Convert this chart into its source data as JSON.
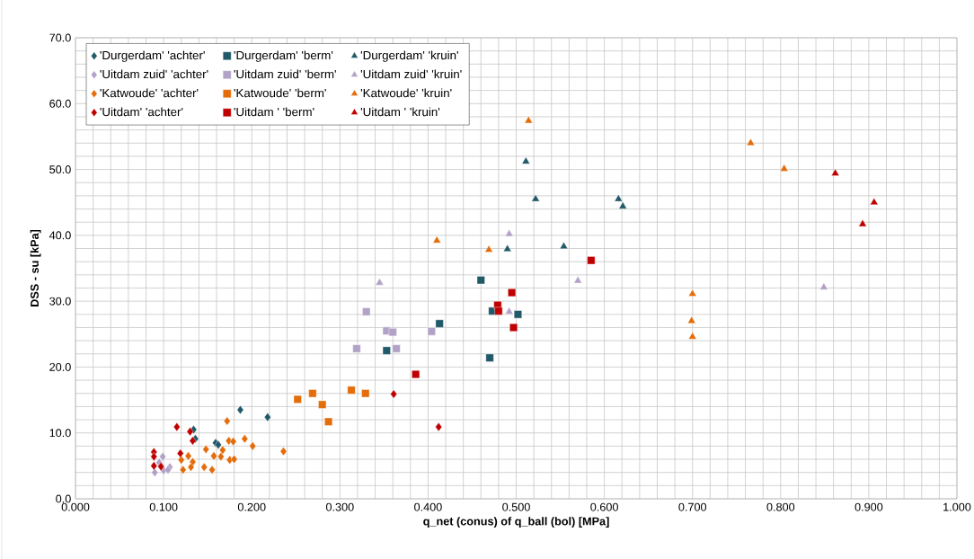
{
  "chart_data": {
    "type": "scatter",
    "xlabel": "q_net  (conus) of q_ball (bol) [MPa]",
    "ylabel": "DSS - su [kPa]",
    "xlim": [
      0,
      1
    ],
    "ylim": [
      0,
      70
    ],
    "xticks": [
      {
        "value": 0,
        "label": "0.000"
      },
      {
        "value": 0.1,
        "label": "0.100"
      },
      {
        "value": 0.2,
        "label": "0.200"
      },
      {
        "value": 0.3,
        "label": "0.300"
      },
      {
        "value": 0.4,
        "label": "0.400"
      },
      {
        "value": 0.5,
        "label": "0.500"
      },
      {
        "value": 0.6,
        "label": "0.600"
      },
      {
        "value": 0.7,
        "label": "0.700"
      },
      {
        "value": 0.8,
        "label": "0.800"
      },
      {
        "value": 0.9,
        "label": "0.900"
      },
      {
        "value": 1,
        "label": "1.000"
      }
    ],
    "yticks": [
      {
        "value": 0,
        "label": "0.0"
      },
      {
        "value": 10,
        "label": "10.0"
      },
      {
        "value": 20,
        "label": "20.0"
      },
      {
        "value": 30,
        "label": "30.0"
      },
      {
        "value": 40,
        "label": "40.0"
      },
      {
        "value": 50,
        "label": "50.0"
      },
      {
        "value": 60,
        "label": "60.0"
      },
      {
        "value": 70,
        "label": "70.0"
      }
    ],
    "grid": true,
    "legend": "top left",
    "series": [
      {
        "name": "'Durgerdam' 'achter'",
        "color": "#215968",
        "marker": "diamond",
        "x": [
          0.187,
          0.218,
          0.134,
          0.136,
          0.159,
          0.162
        ],
        "values": [
          13.5,
          12.4,
          10.5,
          9.1,
          8.5,
          8.2
        ]
      },
      {
        "name": "'Durgerdam' 'berm'",
        "color": "#215968",
        "marker": "square",
        "x": [
          0.46,
          0.473,
          0.502,
          0.413,
          0.353,
          0.47
        ],
        "values": [
          33.2,
          28.5,
          28.0,
          26.6,
          22.5,
          21.4
        ]
      },
      {
        "name": "'Durgerdam' 'kruin'",
        "color": "#215968",
        "marker": "triangle",
        "x": [
          0.511,
          0.522,
          0.616,
          0.621,
          0.49,
          0.554
        ],
        "values": [
          51.2,
          45.5,
          45.5,
          44.4,
          37.9,
          38.3
        ]
      },
      {
        "name": "'Uitdam zuid' 'achter'",
        "color": "#b3a2c7",
        "marker": "diamond",
        "x": [
          0.099,
          0.09,
          0.1,
          0.107,
          0.105,
          0.095
        ],
        "values": [
          6.4,
          4.0,
          4.3,
          4.8,
          4.4,
          5.5
        ]
      },
      {
        "name": "'Uitdam zuid' 'berm'",
        "color": "#b3a2c7",
        "marker": "square",
        "x": [
          0.33,
          0.353,
          0.36,
          0.404,
          0.319,
          0.364
        ],
        "values": [
          28.4,
          25.5,
          25.3,
          25.4,
          22.8,
          22.8
        ]
      },
      {
        "name": "'Uitdam zuid' 'kruin'",
        "color": "#b3a2c7",
        "marker": "triangle",
        "x": [
          0.492,
          0.345,
          0.57,
          0.849,
          0.492
        ],
        "values": [
          40.2,
          32.8,
          33.1,
          32.1,
          28.4
        ]
      },
      {
        "name": "'Katwoude' 'achter'",
        "color": "#e46c0a",
        "marker": "diamond",
        "x": [
          0.172,
          0.174,
          0.179,
          0.192,
          0.201,
          0.236,
          0.148,
          0.167,
          0.157,
          0.165,
          0.175,
          0.18,
          0.128,
          0.12,
          0.133,
          0.122,
          0.131,
          0.146,
          0.155
        ],
        "values": [
          11.8,
          8.8,
          8.7,
          9.1,
          8.0,
          7.2,
          7.5,
          7.4,
          6.5,
          6.4,
          5.9,
          6.0,
          6.5,
          5.9,
          5.6,
          4.4,
          4.8,
          4.8,
          4.4
        ]
      },
      {
        "name": "'Katwoude' 'berm'",
        "color": "#e46c0a",
        "marker": "square",
        "x": [
          0.252,
          0.269,
          0.28,
          0.287,
          0.313,
          0.329
        ],
        "values": [
          15.1,
          16.0,
          14.3,
          11.7,
          16.5,
          16.0
        ]
      },
      {
        "name": "'Katwoude' 'kruin'",
        "color": "#e46c0a",
        "marker": "triangle",
        "x": [
          0.514,
          0.766,
          0.804,
          0.41,
          0.469,
          0.7,
          0.699,
          0.7
        ],
        "values": [
          57.4,
          54.0,
          50.1,
          39.2,
          37.8,
          31.1,
          27.0,
          24.6
        ]
      },
      {
        "name": "'Uitdam' 'achter'",
        "color": "#c00000",
        "marker": "diamond",
        "x": [
          0.361,
          0.412,
          0.115,
          0.13,
          0.133,
          0.119,
          0.089,
          0.089,
          0.089,
          0.097
        ],
        "values": [
          15.9,
          10.9,
          10.9,
          10.2,
          8.8,
          6.9,
          7.1,
          6.4,
          5.0,
          4.9
        ]
      },
      {
        "name": "'Uitdam ' 'berm'",
        "color": "#c00000",
        "marker": "square",
        "x": [
          0.585,
          0.495,
          0.479,
          0.48,
          0.497,
          0.386
        ],
        "values": [
          36.2,
          31.3,
          29.4,
          28.5,
          26.0,
          18.9
        ]
      },
      {
        "name": "'Uitdam ' 'kruin'",
        "color": "#c00000",
        "marker": "triangle",
        "x": [
          0.862,
          0.906,
          0.893
        ],
        "values": [
          49.4,
          45.0,
          41.7
        ]
      }
    ]
  }
}
